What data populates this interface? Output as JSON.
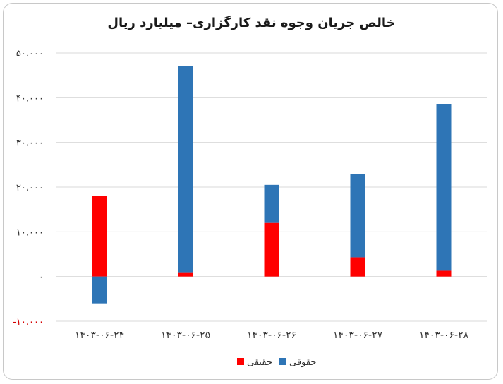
{
  "chart_data": {
    "type": "bar",
    "stacked": true,
    "title": "خالص جریان وجوه نقد کارگزاری– میلیارد ریال",
    "categories": [
      "۱۴۰۳-۰۶-۲۴",
      "۱۴۰۳-۰۶-۲۵",
      "۱۴۰۳-۰۶-۲۶",
      "۱۴۰۳-۰۶-۲۷",
      "۱۴۰۳-۰۶-۲۸"
    ],
    "series": [
      {
        "name": "حقیقی",
        "color": "#ff0000",
        "values": [
          18000,
          800,
          12000,
          4300,
          1300
        ]
      },
      {
        "name": "حقوقی",
        "color": "#2e75b6",
        "values": [
          -6000,
          46200,
          8500,
          18700,
          37200
        ]
      }
    ],
    "ylim": [
      -10000,
      50000
    ],
    "yticks": [
      {
        "value": 50000,
        "label": "۵۰،۰۰۰"
      },
      {
        "value": 40000,
        "label": "۴۰،۰۰۰"
      },
      {
        "value": 30000,
        "label": "۳۰،۰۰۰"
      },
      {
        "value": 20000,
        "label": "۲۰،۰۰۰"
      },
      {
        "value": 10000,
        "label": "۱۰،۰۰۰"
      },
      {
        "value": 0,
        "label": "۰"
      },
      {
        "value": -10000,
        "label": "-۱۰،۰۰۰"
      }
    ],
    "grid": true,
    "legend_position": "bottom",
    "colors": {
      "negative_tick": "#d40000",
      "grid": "#d9d9d9"
    }
  }
}
